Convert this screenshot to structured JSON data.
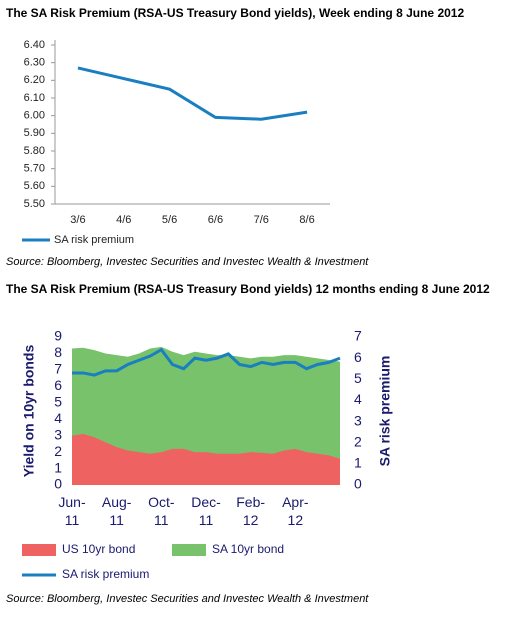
{
  "chart_data": [
    {
      "type": "line",
      "title": "The SA Risk Premium (RSA-US Treasury Bond yields), Week ending 8 June 2012",
      "categories": [
        "3/6",
        "4/6",
        "5/6",
        "6/6",
        "7/6",
        "8/6"
      ],
      "series": [
        {
          "name": "SA risk premium",
          "color": "#1a7fc1",
          "values": [
            6.27,
            6.21,
            6.15,
            5.99,
            5.98,
            6.02
          ]
        }
      ],
      "ylim": [
        5.5,
        6.4
      ],
      "yticks": [
        {
          "value": 5.5,
          "label": "5.50"
        },
        {
          "value": 5.6,
          "label": "5.60"
        },
        {
          "value": 5.7,
          "label": "5.70"
        },
        {
          "value": 5.8,
          "label": "5.80"
        },
        {
          "value": 5.9,
          "label": "5.90"
        },
        {
          "value": 6.0,
          "label": "6.00"
        },
        {
          "value": 6.1,
          "label": "6.10"
        },
        {
          "value": 6.2,
          "label": "6.20"
        },
        {
          "value": 6.3,
          "label": "6.30"
        },
        {
          "value": 6.4,
          "label": "6.40"
        }
      ],
      "legend": "bottom-left",
      "source": "Source: Bloomberg, Investec Securities and Investec Wealth & Investment"
    },
    {
      "type": "area",
      "title": "The SA Risk Premium (RSA-US Treasury Bond yields) 12 months ending 8 June 2012",
      "y_label": "Yield on 10yr bonds",
      "y2_label": "SA risk premium",
      "categories": [
        "Jun-11",
        null,
        null,
        null,
        "Aug-11",
        null,
        null,
        null,
        "Oct-11",
        null,
        null,
        null,
        "Dec-11",
        null,
        null,
        null,
        "Feb-12",
        null,
        null,
        null,
        "Apr-12",
        null,
        null,
        null,
        null
      ],
      "series": [
        {
          "name": "SA 10yr bond",
          "color": "#77c26b",
          "values": [
            8.3,
            8.35,
            8.2,
            8.0,
            7.9,
            7.8,
            8.0,
            8.3,
            8.4,
            8.1,
            7.9,
            8.1,
            8.0,
            7.9,
            7.9,
            7.8,
            7.7,
            7.8,
            7.8,
            7.9,
            7.9,
            7.8,
            7.7,
            7.6,
            7.5
          ]
        },
        {
          "name": "US 10yr bond",
          "color": "#ef6262",
          "values": [
            3.0,
            3.1,
            2.9,
            2.6,
            2.3,
            2.1,
            2.0,
            1.9,
            2.0,
            2.2,
            2.2,
            2.0,
            2.0,
            1.9,
            1.9,
            1.9,
            2.0,
            1.95,
            1.9,
            2.1,
            2.2,
            2.0,
            1.9,
            1.8,
            1.6
          ]
        },
        {
          "name": "SA risk premium",
          "color": "#1a7fc1",
          "type": "line",
          "axis": "y2",
          "values": [
            5.3,
            5.3,
            5.2,
            5.4,
            5.4,
            5.7,
            5.9,
            6.1,
            6.4,
            5.7,
            5.5,
            6.0,
            5.9,
            6.0,
            6.2,
            5.7,
            5.6,
            5.8,
            5.7,
            5.8,
            5.8,
            5.5,
            5.7,
            5.8,
            6.0
          ]
        }
      ],
      "ylim": [
        0,
        9
      ],
      "yticks": [
        0,
        1,
        2,
        3,
        4,
        5,
        6,
        7,
        8,
        9
      ],
      "y2lim": [
        0,
        7
      ],
      "y2ticks": [
        0,
        1,
        2,
        3,
        4,
        5,
        6,
        7
      ],
      "legend": "bottom-left",
      "source": "Source: Bloomberg, Investec Securities and Investec Wealth & Investment"
    }
  ]
}
